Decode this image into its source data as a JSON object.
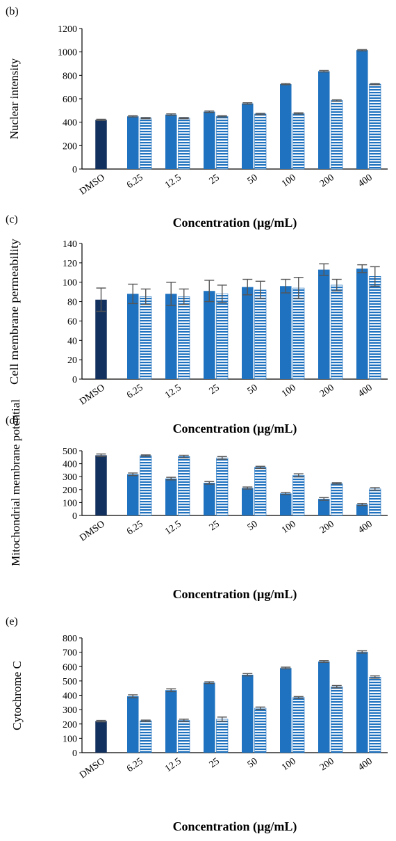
{
  "colors": {
    "dmso": "#13315f",
    "solid": "#1f72bf",
    "striped_bg": "#ffffff",
    "striped_line": "#1f72bf",
    "error": "#555555",
    "axis": "#000000"
  },
  "chart_data": [
    {
      "type": "bar",
      "panel_label": "(b)",
      "categories": [
        "DMSO",
        "6.25",
        "12.5",
        "25",
        "50",
        "100",
        "200",
        "400"
      ],
      "ylabel": "Nuclear intensity",
      "xlabel": "Concentration (µg/mL)",
      "ylim": [
        0,
        1200
      ],
      "yticks": [
        0,
        200,
        400,
        600,
        800,
        1000,
        1200
      ],
      "grid": false,
      "series": [
        {
          "style": "dmso",
          "values": [
            420,
            null,
            null,
            null,
            null,
            null,
            null,
            null
          ],
          "errors": [
            5,
            null,
            null,
            null,
            null,
            null,
            null,
            null
          ]
        },
        {
          "style": "solid",
          "values": [
            null,
            450,
            465,
            490,
            560,
            725,
            835,
            1015
          ],
          "errors": [
            null,
            5,
            6,
            6,
            6,
            5,
            6,
            5
          ]
        },
        {
          "style": "striped",
          "values": [
            null,
            435,
            435,
            450,
            470,
            475,
            585,
            725
          ],
          "errors": [
            null,
            5,
            5,
            5,
            6,
            5,
            6,
            5
          ]
        }
      ]
    },
    {
      "type": "bar",
      "panel_label": "(c)",
      "categories": [
        "DMSO",
        "6.25",
        "12.5",
        "25",
        "50",
        "100",
        "200",
        "400"
      ],
      "ylabel": "Cell membrane permeability",
      "xlabel": "Concentration (µg/mL)",
      "ylim": [
        0,
        140
      ],
      "yticks": [
        0,
        20,
        40,
        60,
        80,
        100,
        120,
        140
      ],
      "grid": false,
      "series": [
        {
          "style": "dmso",
          "values": [
            82,
            null,
            null,
            null,
            null,
            null,
            null,
            null
          ],
          "errors": [
            12,
            null,
            null,
            null,
            null,
            null,
            null,
            null
          ]
        },
        {
          "style": "solid",
          "values": [
            null,
            88,
            88,
            91,
            95,
            96,
            113,
            114
          ],
          "errors": [
            null,
            10,
            12,
            11,
            8,
            7,
            6,
            4
          ]
        },
        {
          "style": "striped",
          "values": [
            null,
            85,
            85,
            88,
            92,
            94,
            97,
            106
          ],
          "errors": [
            null,
            8,
            8,
            9,
            9,
            11,
            6,
            10
          ]
        }
      ]
    },
    {
      "type": "bar",
      "panel_label": "(d)",
      "categories": [
        "DMSO",
        "6.25",
        "12.5",
        "25",
        "50",
        "100",
        "200",
        "400"
      ],
      "ylabel": "Mitochondrial membrane potential",
      "xlabel": "Concentration (µg/mL)",
      "ylim": [
        0,
        500
      ],
      "yticks": [
        0,
        100,
        200,
        300,
        400,
        500
      ],
      "grid": false,
      "series": [
        {
          "style": "dmso",
          "values": [
            465,
            null,
            null,
            null,
            null,
            null,
            null,
            null
          ],
          "errors": [
            10,
            null,
            null,
            null,
            null,
            null,
            null,
            null
          ]
        },
        {
          "style": "solid",
          "values": [
            null,
            318,
            285,
            252,
            212,
            170,
            128,
            85
          ],
          "errors": [
            null,
            10,
            10,
            10,
            8,
            8,
            10,
            8
          ]
        },
        {
          "style": "striped",
          "values": [
            null,
            463,
            455,
            445,
            372,
            310,
            248,
            205
          ],
          "errors": [
            null,
            5,
            10,
            10,
            8,
            12,
            5,
            10
          ]
        }
      ]
    },
    {
      "type": "bar",
      "panel_label": "(e)",
      "categories": [
        "DMSO",
        "6.25",
        "12.5",
        "25",
        "50",
        "100",
        "200",
        "400"
      ],
      "ylabel": "Cytochrome C",
      "xlabel": "Concentration (µg/mL)",
      "ylim": [
        0,
        800
      ],
      "yticks": [
        0,
        100,
        200,
        300,
        400,
        500,
        600,
        700,
        800
      ],
      "grid": false,
      "series": [
        {
          "style": "dmso",
          "values": [
            220,
            null,
            null,
            null,
            null,
            null,
            null,
            null
          ],
          "errors": [
            5,
            null,
            null,
            null,
            null,
            null,
            null,
            null
          ]
        },
        {
          "style": "solid",
          "values": [
            null,
            393,
            435,
            488,
            543,
            590,
            635,
            702
          ],
          "errors": [
            null,
            10,
            10,
            6,
            8,
            6,
            6,
            8
          ]
        },
        {
          "style": "striped",
          "values": [
            null,
            222,
            225,
            233,
            310,
            385,
            460,
            527
          ],
          "errors": [
            null,
            5,
            8,
            15,
            8,
            6,
            8,
            8
          ]
        }
      ]
    }
  ]
}
